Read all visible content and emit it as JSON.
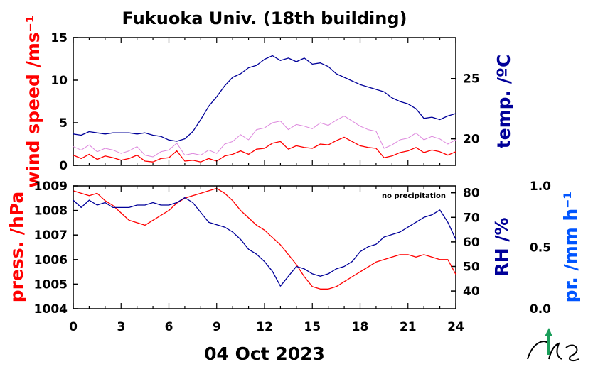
{
  "title": "Fukuoka Univ. (18th building)",
  "date_label": "04 Oct 2023",
  "note": "no precipitation",
  "colors": {
    "red": "#ff0000",
    "navy": "#000099",
    "blue": "#0055ff",
    "magenta": "#dd88dd",
    "green": "#1a9e5a"
  },
  "icons": [
    "logo-icon"
  ],
  "chart_data": [
    {
      "type": "line",
      "panel": "top",
      "x_ticks": [
        "0",
        "3",
        "6",
        "9",
        "12",
        "15",
        "18",
        "21",
        "24"
      ],
      "xlim": [
        0,
        24
      ],
      "y_left": {
        "label": "wind speed /ms⁻¹",
        "ticks": [
          "0",
          "5",
          "10",
          "15"
        ],
        "lim": [
          0,
          15
        ]
      },
      "y_right": {
        "label": "temp. /ºC",
        "ticks": [
          "20",
          "25"
        ],
        "lim": [
          17.8,
          28.4
        ]
      },
      "series": [
        {
          "axis": "left",
          "color": "#ff0000",
          "x": [
            0,
            0.5,
            1,
            1.5,
            2,
            2.5,
            3,
            3.5,
            4,
            4.5,
            5,
            5.5,
            6,
            6.5,
            7,
            7.5,
            8,
            8.5,
            9,
            9.5,
            10,
            10.5,
            11,
            11.5,
            12,
            12.5,
            13,
            13.5,
            14,
            14.5,
            15,
            15.5,
            16,
            16.5,
            17,
            17.5,
            18,
            18.5,
            19,
            19.5,
            20,
            20.5,
            21,
            21.5,
            22,
            22.5,
            23,
            23.5,
            24
          ],
          "values": [
            1.2,
            0.8,
            1.3,
            0.7,
            1.1,
            0.9,
            0.6,
            0.8,
            1.2,
            0.5,
            0.4,
            0.8,
            0.9,
            1.7,
            0.5,
            0.6,
            0.4,
            0.8,
            0.5,
            1.1,
            1.3,
            1.7,
            1.3,
            1.9,
            2.0,
            2.6,
            2.8,
            1.9,
            2.3,
            2.1,
            2.0,
            2.5,
            2.4,
            2.9,
            3.3,
            2.8,
            2.3,
            2.1,
            2.0,
            0.9,
            1.1,
            1.5,
            1.7,
            2.1,
            1.5,
            1.8,
            1.6,
            1.2,
            1.6
          ]
        },
        {
          "axis": "left",
          "color": "#dd88dd",
          "note": "gust",
          "x": [
            0,
            0.5,
            1,
            1.5,
            2,
            2.5,
            3,
            3.5,
            4,
            4.5,
            5,
            5.5,
            6,
            6.5,
            7,
            7.5,
            8,
            8.5,
            9,
            9.5,
            10,
            10.5,
            11,
            11.5,
            12,
            12.5,
            13,
            13.5,
            14,
            14.5,
            15,
            15.5,
            16,
            16.5,
            17,
            17.5,
            18,
            18.5,
            19,
            19.5,
            20,
            20.5,
            21,
            21.5,
            22,
            22.5,
            23,
            23.5,
            24
          ],
          "values": [
            2.2,
            1.8,
            2.4,
            1.6,
            2.0,
            1.8,
            1.4,
            1.7,
            2.2,
            1.2,
            1.0,
            1.6,
            1.8,
            2.6,
            1.2,
            1.4,
            1.2,
            1.8,
            1.4,
            2.5,
            2.8,
            3.6,
            3.0,
            4.2,
            4.4,
            5.0,
            5.2,
            4.2,
            4.8,
            4.6,
            4.3,
            5.0,
            4.7,
            5.3,
            5.8,
            5.2,
            4.6,
            4.2,
            4.0,
            2.0,
            2.4,
            3.0,
            3.2,
            3.8,
            3.0,
            3.4,
            3.1,
            2.5,
            3.0
          ]
        },
        {
          "axis": "right",
          "color": "#000099",
          "x": [
            0,
            0.5,
            1,
            1.5,
            2,
            2.5,
            3,
            3.5,
            4,
            4.5,
            5,
            5.5,
            6,
            6.5,
            7,
            7.5,
            8,
            8.5,
            9,
            9.5,
            10,
            10.5,
            11,
            11.5,
            12,
            12.5,
            13,
            13.5,
            14,
            14.5,
            15,
            15.5,
            16,
            16.5,
            17,
            17.5,
            18,
            18.5,
            19,
            19.5,
            20,
            20.5,
            21,
            21.5,
            22,
            22.5,
            23,
            23.5,
            24
          ],
          "values": [
            20.4,
            20.3,
            20.6,
            20.5,
            20.4,
            20.5,
            20.5,
            20.5,
            20.4,
            20.5,
            20.3,
            20.2,
            19.9,
            19.8,
            20.0,
            20.6,
            21.6,
            22.7,
            23.5,
            24.4,
            25.1,
            25.4,
            25.9,
            26.1,
            26.6,
            26.9,
            26.5,
            26.7,
            26.4,
            26.7,
            26.2,
            26.3,
            26.0,
            25.4,
            25.1,
            24.8,
            24.5,
            24.3,
            24.1,
            23.9,
            23.4,
            23.1,
            22.9,
            22.5,
            21.7,
            21.8,
            21.6,
            21.9,
            22.1
          ]
        }
      ]
    },
    {
      "type": "line",
      "panel": "bottom",
      "x_ticks": [
        "0",
        "3",
        "6",
        "9",
        "12",
        "15",
        "18",
        "21",
        "24"
      ],
      "xlim": [
        0,
        24
      ],
      "xlabel": "04 Oct 2023",
      "y_left": {
        "label": "press. /hPa",
        "ticks": [
          "1004",
          "1005",
          "1006",
          "1007",
          "1008",
          "1009"
        ],
        "lim": [
          1004,
          1009
        ]
      },
      "y_right": {
        "label": "RH /%",
        "ticks": [
          "40",
          "50",
          "60",
          "70",
          "80"
        ],
        "lim": [
          32.8,
          82.8
        ]
      },
      "y_right2": {
        "label": "pr. /mm h⁻¹",
        "ticks": [
          "0.0",
          "0.5",
          "1.0"
        ],
        "lim": [
          0,
          1
        ]
      },
      "series": [
        {
          "axis": "left",
          "color": "#ff0000",
          "x": [
            0,
            0.5,
            1,
            1.5,
            2,
            2.5,
            3,
            3.5,
            4,
            4.5,
            5,
            5.5,
            6,
            6.5,
            7,
            7.5,
            8,
            8.5,
            9,
            9.5,
            10,
            10.5,
            11,
            11.5,
            12,
            12.5,
            13,
            13.5,
            14,
            14.5,
            15,
            15.5,
            16,
            16.5,
            17,
            17.5,
            18,
            18.5,
            19,
            19.5,
            20,
            20.5,
            21,
            21.5,
            22,
            22.5,
            23,
            23.5,
            24
          ],
          "values": [
            1008.8,
            1008.7,
            1008.6,
            1008.7,
            1008.4,
            1008.2,
            1007.9,
            1007.6,
            1007.5,
            1007.4,
            1007.6,
            1007.8,
            1008.0,
            1008.3,
            1008.5,
            1008.6,
            1008.7,
            1008.8,
            1008.9,
            1008.7,
            1008.4,
            1008.0,
            1007.7,
            1007.4,
            1007.2,
            1006.9,
            1006.6,
            1006.2,
            1005.8,
            1005.3,
            1004.9,
            1004.8,
            1004.8,
            1004.9,
            1005.1,
            1005.3,
            1005.5,
            1005.7,
            1005.9,
            1006.0,
            1006.1,
            1006.2,
            1006.2,
            1006.1,
            1006.2,
            1006.1,
            1006.0,
            1006.0,
            1005.4
          ]
        },
        {
          "axis": "right",
          "color": "#000099",
          "x": [
            0,
            0.5,
            1,
            1.5,
            2,
            2.5,
            3,
            3.5,
            4,
            4.5,
            5,
            5.5,
            6,
            6.5,
            7,
            7.5,
            8,
            8.5,
            9,
            9.5,
            10,
            10.5,
            11,
            11.5,
            12,
            12.5,
            13,
            13.5,
            14,
            14.5,
            15,
            15.5,
            16,
            16.5,
            17,
            17.5,
            18,
            18.5,
            19,
            19.5,
            20,
            20.5,
            21,
            21.5,
            22,
            22.5,
            23,
            23.5,
            24
          ],
          "values": [
            77,
            74,
            77,
            75,
            76,
            74,
            74,
            74,
            75,
            75,
            76,
            75,
            75,
            76,
            78,
            76,
            72,
            68,
            67,
            66,
            64,
            61,
            57,
            55,
            52,
            48,
            42,
            46,
            50,
            49,
            47,
            46,
            47,
            49,
            50,
            52,
            56,
            58,
            59,
            62,
            63,
            64,
            66,
            68,
            70,
            71,
            73,
            68,
            61
          ]
        }
      ]
    }
  ]
}
